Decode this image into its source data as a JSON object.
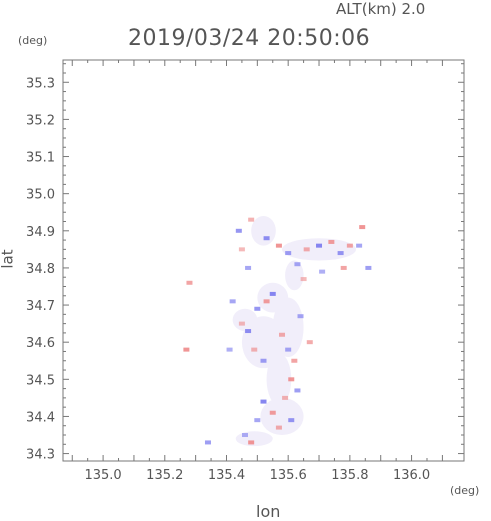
{
  "header": {
    "altitude_label": "ALT(km) 2.0",
    "datetime": "2019/03/24 20:50:06"
  },
  "chart_data": {
    "type": "heatmap",
    "xlabel": "lon",
    "ylabel": "lat",
    "x_unit": "(deg)",
    "y_unit": "(deg)",
    "xlim": [
      134.87,
      136.17
    ],
    "ylim": [
      34.28,
      35.36
    ],
    "x_ticks": [
      "135.0",
      "135.2",
      "135.4",
      "135.6",
      "135.8",
      "136.0"
    ],
    "y_ticks": [
      "34.3",
      "34.4",
      "34.5",
      "34.6",
      "34.7",
      "34.8",
      "34.9",
      "35.0",
      "35.1",
      "35.2",
      "35.3"
    ],
    "x_tick_values": [
      135.0,
      135.2,
      135.4,
      135.6,
      135.8,
      136.0
    ],
    "y_tick_values": [
      34.3,
      34.4,
      34.5,
      34.6,
      34.7,
      34.8,
      34.9,
      35.0,
      35.1,
      35.2,
      35.3
    ],
    "colors": {
      "positive": "#ee8888",
      "negative": "#7777ee",
      "neutral": "#f1eefa",
      "axis": "#777777"
    },
    "coverage": [
      {
        "lon": 135.52,
        "lat": 34.6,
        "rx": 0.07,
        "ry": 0.07,
        "v": 0
      },
      {
        "lon": 135.6,
        "lat": 34.64,
        "rx": 0.05,
        "ry": 0.08,
        "v": 0
      },
      {
        "lon": 135.55,
        "lat": 34.72,
        "rx": 0.05,
        "ry": 0.04,
        "v": 0
      },
      {
        "lon": 135.57,
        "lat": 34.5,
        "rx": 0.04,
        "ry": 0.07,
        "v": 0
      },
      {
        "lon": 135.58,
        "lat": 34.4,
        "rx": 0.07,
        "ry": 0.05,
        "v": 0
      },
      {
        "lon": 135.49,
        "lat": 34.34,
        "rx": 0.06,
        "ry": 0.02,
        "v": 0
      },
      {
        "lon": 135.7,
        "lat": 34.85,
        "rx": 0.12,
        "ry": 0.03,
        "v": 0
      },
      {
        "lon": 135.52,
        "lat": 34.9,
        "rx": 0.04,
        "ry": 0.04,
        "v": 0
      },
      {
        "lon": 135.62,
        "lat": 34.78,
        "rx": 0.03,
        "ry": 0.04,
        "v": 0
      },
      {
        "lon": 135.46,
        "lat": 34.66,
        "rx": 0.04,
        "ry": 0.03,
        "v": 0
      }
    ],
    "echoes": [
      {
        "lon": 135.27,
        "lat": 34.58,
        "v": 0.9
      },
      {
        "lon": 135.28,
        "lat": 34.76,
        "v": 0.7
      },
      {
        "lon": 135.34,
        "lat": 34.33,
        "v": -0.6
      },
      {
        "lon": 135.42,
        "lat": 34.71,
        "v": -0.5
      },
      {
        "lon": 135.45,
        "lat": 34.65,
        "v": 0.4
      },
      {
        "lon": 135.47,
        "lat": 34.63,
        "v": -0.8
      },
      {
        "lon": 135.5,
        "lat": 34.69,
        "v": -0.7
      },
      {
        "lon": 135.53,
        "lat": 34.71,
        "v": 0.8
      },
      {
        "lon": 135.55,
        "lat": 34.73,
        "v": -0.9
      },
      {
        "lon": 135.58,
        "lat": 34.62,
        "v": 0.6
      },
      {
        "lon": 135.6,
        "lat": 34.58,
        "v": -0.5
      },
      {
        "lon": 135.62,
        "lat": 34.55,
        "v": 0.7
      },
      {
        "lon": 135.61,
        "lat": 34.5,
        "v": 0.9
      },
      {
        "lon": 135.63,
        "lat": 34.47,
        "v": -0.6
      },
      {
        "lon": 135.59,
        "lat": 34.45,
        "v": 0.5
      },
      {
        "lon": 135.52,
        "lat": 34.44,
        "v": -0.9
      },
      {
        "lon": 135.55,
        "lat": 34.41,
        "v": 0.8
      },
      {
        "lon": 135.61,
        "lat": 34.39,
        "v": -0.7
      },
      {
        "lon": 135.57,
        "lat": 34.37,
        "v": 0.6
      },
      {
        "lon": 135.5,
        "lat": 34.39,
        "v": -0.5
      },
      {
        "lon": 135.46,
        "lat": 34.35,
        "v": -0.4
      },
      {
        "lon": 135.48,
        "lat": 34.33,
        "v": 0.9
      },
      {
        "lon": 135.52,
        "lat": 34.55,
        "v": -0.6
      },
      {
        "lon": 135.49,
        "lat": 34.58,
        "v": 0.5
      },
      {
        "lon": 135.64,
        "lat": 34.67,
        "v": -0.5
      },
      {
        "lon": 135.67,
        "lat": 34.6,
        "v": 0.6
      },
      {
        "lon": 135.44,
        "lat": 34.9,
        "v": -0.7
      },
      {
        "lon": 135.48,
        "lat": 34.93,
        "v": 0.5
      },
      {
        "lon": 135.53,
        "lat": 34.88,
        "v": -0.8
      },
      {
        "lon": 135.57,
        "lat": 34.86,
        "v": 0.9
      },
      {
        "lon": 135.6,
        "lat": 34.84,
        "v": -0.6
      },
      {
        "lon": 135.63,
        "lat": 34.81,
        "v": -0.5
      },
      {
        "lon": 135.66,
        "lat": 34.85,
        "v": 0.6
      },
      {
        "lon": 135.7,
        "lat": 34.86,
        "v": -0.9
      },
      {
        "lon": 135.74,
        "lat": 34.87,
        "v": 0.8
      },
      {
        "lon": 135.77,
        "lat": 34.84,
        "v": -0.7
      },
      {
        "lon": 135.8,
        "lat": 34.86,
        "v": 0.7
      },
      {
        "lon": 135.84,
        "lat": 34.91,
        "v": 0.9
      },
      {
        "lon": 135.83,
        "lat": 34.86,
        "v": -0.5
      },
      {
        "lon": 135.86,
        "lat": 34.8,
        "v": -0.6
      },
      {
        "lon": 135.78,
        "lat": 34.8,
        "v": 0.7
      },
      {
        "lon": 135.71,
        "lat": 34.79,
        "v": -0.4
      },
      {
        "lon": 135.65,
        "lat": 34.77,
        "v": 0.4
      },
      {
        "lon": 135.47,
        "lat": 34.8,
        "v": -0.5
      },
      {
        "lon": 135.45,
        "lat": 34.85,
        "v": 0.4
      },
      {
        "lon": 135.41,
        "lat": 34.58,
        "v": -0.4
      }
    ]
  }
}
